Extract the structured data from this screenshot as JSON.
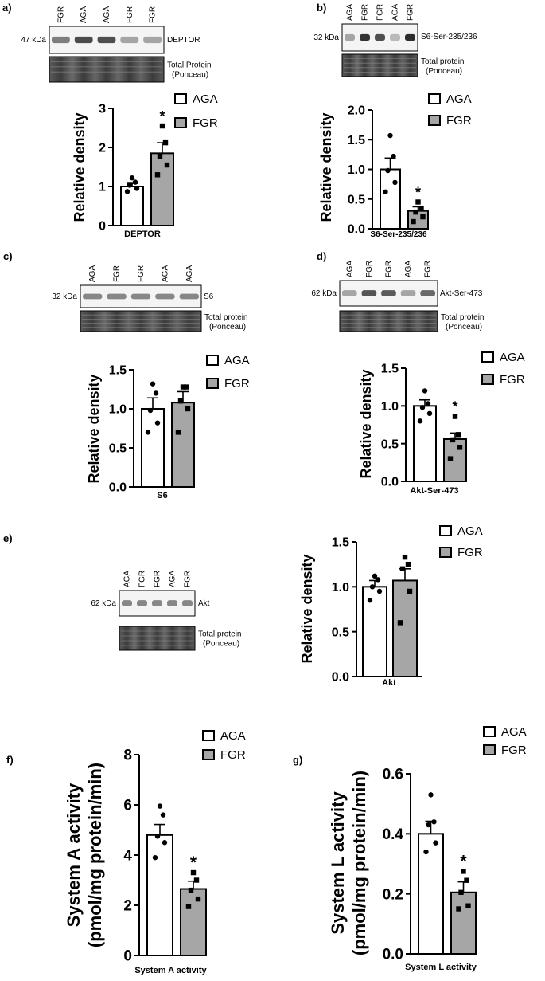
{
  "colors": {
    "aga_fill": "#ffffff",
    "fgr_fill": "#a6a6a6",
    "ink": "#000000"
  },
  "legend": {
    "aga": "AGA",
    "fgr": "FGR"
  },
  "panels": [
    {
      "label": "a)",
      "blot": {
        "lanes": [
          "FGR",
          "AGA",
          "AGA",
          "FGR",
          "FGR"
        ],
        "kda": "47 kDa",
        "target": "DEPTOR",
        "ponceau_line1": "Total Protein",
        "ponceau_line2": "(Ponceau)"
      }
    },
    {
      "label": "b)",
      "blot": {
        "lanes": [
          "AGA",
          "FGR",
          "FGR",
          "AGA",
          "FGR"
        ],
        "kda": "32 kDa",
        "target": "S6-Ser-235/236",
        "ponceau_line1": "Total protein",
        "ponceau_line2": "(Ponceau)"
      }
    },
    {
      "label": "c)",
      "blot": {
        "lanes": [
          "AGA",
          "FGR",
          "FGR",
          "AGA",
          "AGA"
        ],
        "kda": "32 kDa",
        "target": "S6",
        "ponceau_line1": "Total protein",
        "ponceau_line2": "(Ponceau)"
      }
    },
    {
      "label": "d)",
      "blot": {
        "lanes": [
          "AGA",
          "FGR",
          "FGR",
          "AGA",
          "FGR"
        ],
        "kda": "62 kDa",
        "target": "Akt-Ser-473",
        "ponceau_line1": "Total protein",
        "ponceau_line2": "(Ponceau)"
      }
    },
    {
      "label": "e)",
      "blot": {
        "lanes": [
          "AGA",
          "FGR",
          "FGR",
          "AGA",
          "FGR"
        ],
        "kda": "62 kDa",
        "target": "Akt",
        "ponceau_line1": "Total protein",
        "ponceau_line2": "(Ponceau)"
      }
    },
    {
      "label": "f)"
    },
    {
      "label": "g)"
    }
  ],
  "chart_data": [
    {
      "type": "bar",
      "panel": "a)",
      "categories": [
        "AGA",
        "FGR"
      ],
      "values": [
        1.0,
        1.85
      ],
      "sem": [
        0.08,
        0.27
      ],
      "points": [
        [
          0.87,
          0.95,
          1.03,
          1.11,
          1.22
        ],
        [
          1.3,
          1.55,
          1.78,
          2.12,
          2.55
        ]
      ],
      "markers": [
        "circle",
        "square"
      ],
      "ylabel": "Relative density",
      "xlabel": "DEPTOR",
      "ylim": [
        0,
        3
      ],
      "yticks": [
        "0",
        "1",
        "2",
        "3"
      ],
      "ytick_values": [
        0,
        1,
        2,
        3
      ],
      "significance": [
        false,
        true
      ],
      "sig_label": "*"
    },
    {
      "type": "bar",
      "panel": "b)",
      "categories": [
        "AGA",
        "FGR"
      ],
      "values": [
        1.0,
        0.3
      ],
      "sem": [
        0.19,
        0.07
      ],
      "points": [
        [
          0.62,
          0.78,
          0.98,
          1.22,
          1.57
        ],
        [
          0.12,
          0.2,
          0.28,
          0.34,
          0.45
        ]
      ],
      "markers": [
        "circle",
        "square"
      ],
      "ylabel": "Relative density",
      "xlabel": "S6-Ser-235/236",
      "ylim": [
        0,
        2
      ],
      "yticks": [
        "0.0",
        "0.5",
        "1.0",
        "1.5",
        "2.0"
      ],
      "ytick_values": [
        0,
        0.5,
        1.0,
        1.5,
        2.0
      ],
      "significance": [
        false,
        true
      ],
      "sig_label": "*"
    },
    {
      "type": "bar",
      "panel": "c)",
      "categories": [
        "AGA",
        "FGR"
      ],
      "values": [
        1.0,
        1.08
      ],
      "sem": [
        0.14,
        0.14
      ],
      "points": [
        [
          0.7,
          0.82,
          0.98,
          1.2,
          1.32
        ],
        [
          0.7,
          1.0,
          1.1,
          1.28,
          1.28
        ]
      ],
      "markers": [
        "circle",
        "square"
      ],
      "ylabel": "Relative density",
      "xlabel": "S6",
      "ylim": [
        0,
        1.5
      ],
      "yticks": [
        "0.0",
        "0.5",
        "1.0",
        "1.5"
      ],
      "ytick_values": [
        0,
        0.5,
        1.0,
        1.5
      ],
      "significance": [
        false,
        false
      ],
      "sig_label": ""
    },
    {
      "type": "bar",
      "panel": "d)",
      "categories": [
        "AGA",
        "FGR"
      ],
      "values": [
        1.0,
        0.56
      ],
      "sem": [
        0.08,
        0.08
      ],
      "points": [
        [
          0.8,
          0.9,
          0.98,
          1.03,
          1.2
        ],
        [
          0.3,
          0.45,
          0.55,
          0.62,
          0.86
        ]
      ],
      "markers": [
        "circle",
        "square"
      ],
      "ylabel": "Relative density",
      "xlabel": "Akt-Ser-473",
      "ylim": [
        0,
        1.5
      ],
      "yticks": [
        "0.0",
        "0.5",
        "1.0",
        "1.5"
      ],
      "ytick_values": [
        0,
        0.5,
        1.0,
        1.5
      ],
      "significance": [
        false,
        true
      ],
      "sig_label": "*"
    },
    {
      "type": "bar",
      "panel": "e)",
      "categories": [
        "AGA",
        "FGR"
      ],
      "values": [
        1.0,
        1.07
      ],
      "sem": [
        0.07,
        0.13
      ],
      "points": [
        [
          0.85,
          0.95,
          1.0,
          1.08,
          1.12
        ],
        [
          0.6,
          0.95,
          1.2,
          1.25,
          1.33
        ]
      ],
      "markers": [
        "circle",
        "square"
      ],
      "ylabel": "Relative density",
      "xlabel": "Akt",
      "ylim": [
        0,
        1.5
      ],
      "yticks": [
        "0.0",
        "0.5",
        "1.0",
        "1.5"
      ],
      "ytick_values": [
        0,
        0.5,
        1.0,
        1.5
      ],
      "significance": [
        false,
        false
      ],
      "sig_label": ""
    },
    {
      "type": "bar",
      "panel": "f)",
      "categories": [
        "AGA",
        "FGR"
      ],
      "values": [
        4.8,
        2.65
      ],
      "sem": [
        0.42,
        0.31
      ],
      "points": [
        [
          3.9,
          4.5,
          4.75,
          5.6,
          5.95
        ],
        [
          1.95,
          2.25,
          2.6,
          3.0,
          3.3
        ]
      ],
      "markers": [
        "circle",
        "square"
      ],
      "ylabel_line1": "System A activity",
      "ylabel_line2": "(pmol/mg protein/min)",
      "xlabel": "System A activity",
      "ylim": [
        0,
        8
      ],
      "yticks": [
        "0",
        "2",
        "4",
        "6",
        "8"
      ],
      "ytick_values": [
        0,
        2,
        4,
        6,
        8
      ],
      "significance": [
        false,
        true
      ],
      "sig_label": "*"
    },
    {
      "type": "bar",
      "panel": "g)",
      "categories": [
        "AGA",
        "FGR"
      ],
      "values": [
        0.4,
        0.205
      ],
      "sem": [
        0.042,
        0.035
      ],
      "points": [
        [
          0.34,
          0.37,
          0.43,
          0.44,
          0.53
        ],
        [
          0.15,
          0.16,
          0.205,
          0.245,
          0.275
        ]
      ],
      "markers": [
        "circle",
        "square"
      ],
      "ylabel_line1": "System L activity",
      "ylabel_line2": "(pmol/mg protein/min)",
      "xlabel": "System L activity",
      "ylim": [
        0,
        0.6
      ],
      "yticks": [
        "0.0",
        "0.2",
        "0.4",
        "0.6"
      ],
      "ytick_values": [
        0,
        0.2,
        0.4,
        0.6
      ],
      "significance": [
        false,
        true
      ],
      "sig_label": "*"
    }
  ]
}
